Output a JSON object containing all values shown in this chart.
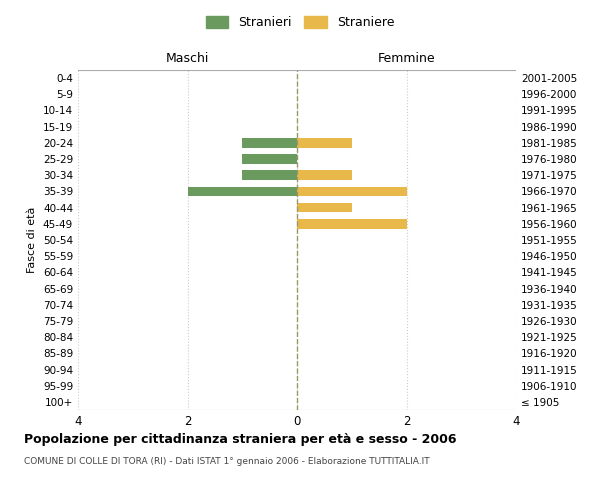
{
  "age_groups": [
    "100+",
    "95-99",
    "90-94",
    "85-89",
    "80-84",
    "75-79",
    "70-74",
    "65-69",
    "60-64",
    "55-59",
    "50-54",
    "45-49",
    "40-44",
    "35-39",
    "30-34",
    "25-29",
    "20-24",
    "15-19",
    "10-14",
    "5-9",
    "0-4"
  ],
  "birth_years": [
    "≤ 1905",
    "1906-1910",
    "1911-1915",
    "1916-1920",
    "1921-1925",
    "1926-1930",
    "1931-1935",
    "1936-1940",
    "1941-1945",
    "1946-1950",
    "1951-1955",
    "1956-1960",
    "1961-1965",
    "1966-1970",
    "1971-1975",
    "1976-1980",
    "1981-1985",
    "1986-1990",
    "1991-1995",
    "1996-2000",
    "2001-2005"
  ],
  "maschi": [
    0,
    0,
    0,
    0,
    0,
    0,
    0,
    0,
    0,
    0,
    0,
    0,
    0,
    -2,
    -1,
    -1,
    -1,
    0,
    0,
    0,
    0
  ],
  "femmine": [
    0,
    0,
    0,
    0,
    0,
    0,
    0,
    0,
    0,
    0,
    0,
    2,
    1,
    2,
    1,
    0,
    1,
    0,
    0,
    0,
    0
  ],
  "male_color": "#6b9a5e",
  "female_color": "#e8b84b",
  "title_main": "Popolazione per cittadinanza straniera per età e sesso - 2006",
  "title_sub": "COMUNE DI COLLE DI TORA (RI) - Dati ISTAT 1° gennaio 2006 - Elaborazione TUTTITALIA.IT",
  "legend_male": "Stranieri",
  "legend_female": "Straniere",
  "xlabel_left": "Maschi",
  "xlabel_right": "Femmine",
  "ylabel_left": "Fasce di età",
  "xlim": 4,
  "xticks": [
    -4,
    -2,
    0,
    2,
    4
  ],
  "xticklabels": [
    "4",
    "2",
    "0",
    "2",
    "4"
  ],
  "background_color": "#ffffff",
  "grid_color": "#cccccc"
}
